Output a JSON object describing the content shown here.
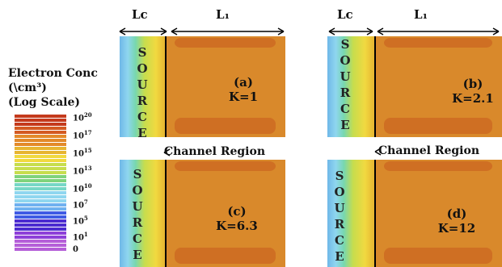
{
  "legend": {
    "title_lines": [
      "Electron Conc",
      "(\\cm³)",
      "(Log Scale)"
    ],
    "ticks": [
      {
        "base": "10",
        "exp": "20"
      },
      {
        "base": "10",
        "exp": "17"
      },
      {
        "base": "10",
        "exp": "15"
      },
      {
        "base": "10",
        "exp": "13"
      },
      {
        "base": "10",
        "exp": "10"
      },
      {
        "base": "10",
        "exp": "7"
      },
      {
        "base": "10",
        "exp": "5"
      },
      {
        "base": "10",
        "exp": "1"
      },
      {
        "base": "0",
        "exp": ""
      }
    ],
    "colors": [
      "#c43a1c",
      "#d45a22",
      "#e38a2a",
      "#e7b531",
      "#f1d940",
      "#c7dd4d",
      "#7fd37c",
      "#77d7c6",
      "#8fd6ef",
      "#6fb1f0",
      "#3f5be4",
      "#4b2bd0",
      "#8e3fd8",
      "#b55fd8"
    ]
  },
  "arrows": {
    "lc": "Lc",
    "l1": "L₁"
  },
  "source_letters": [
    "S",
    "O",
    "U",
    "R",
    "C",
    "E"
  ],
  "channel_label": "Channel Region",
  "panels": [
    {
      "id": "a",
      "tag": "(a)",
      "k": "K=1"
    },
    {
      "id": "b",
      "tag": "(b)",
      "k": "K=2.1"
    },
    {
      "id": "c",
      "tag": "(c)",
      "k": "K=6.3"
    },
    {
      "id": "d",
      "tag": "(d)",
      "k": "K=12"
    }
  ],
  "colors": {
    "channel_fill": "#d9892b",
    "channel_band": "#cf6f23",
    "source_border": "#f0c84a",
    "boundary_line": "#000000"
  }
}
